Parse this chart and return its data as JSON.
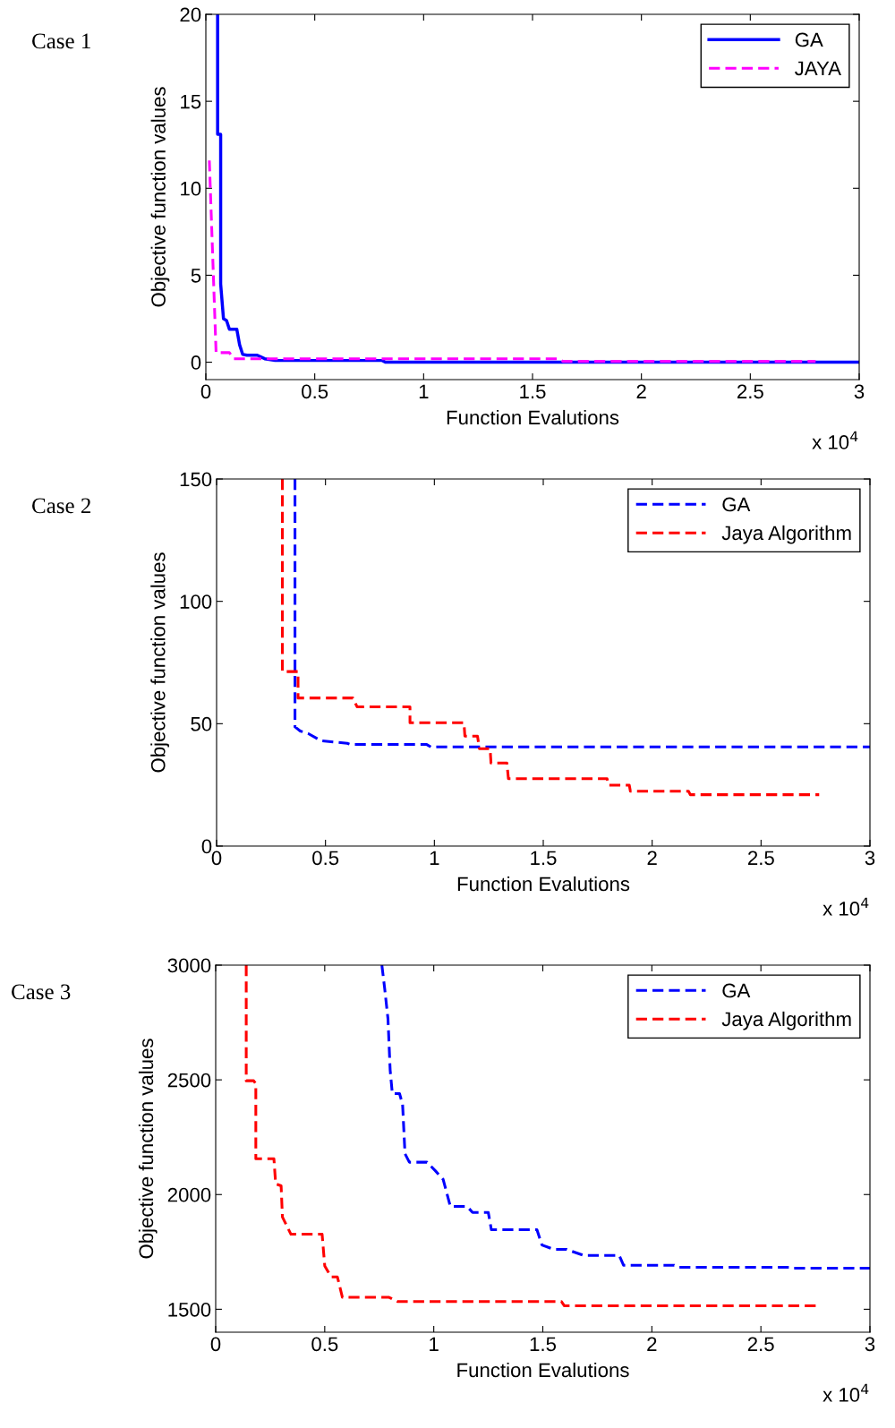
{
  "chart_data": [
    {
      "type": "line",
      "xlabel": "Function Evalutions",
      "ylabel": "Objective function values",
      "annotations": [
        "Case 1",
        "x 10$^{4}$"
      ],
      "xlim": [
        0,
        3
      ],
      "ylim": [
        -1,
        20
      ],
      "xticks": [
        0,
        0.5,
        1,
        1.5,
        2,
        2.5,
        3
      ],
      "yticks": [
        0,
        5,
        10,
        15,
        20
      ],
      "grid": false,
      "legend": "top right",
      "series": [
        {
          "name": "GA",
          "color": "#0000ff",
          "line_style": "solid",
          "x": [
            0.054,
            0.054,
            0.068,
            0.068,
            0.081,
            0.095,
            0.108,
            0.142,
            0.155,
            0.169,
            0.189,
            0.236,
            0.27,
            0.318,
            0.81,
            0.824,
            3
          ],
          "values": [
            20,
            13.1,
            13.1,
            4.5,
            2.5,
            2.4,
            1.9,
            1.9,
            1.0,
            0.45,
            0.4,
            0.4,
            0.2,
            0.1,
            0.1,
            0,
            0
          ]
        },
        {
          "name": "JAYA",
          "color": "#ff00ff",
          "line_style": "dashed",
          "x": [
            0.016,
            0.047,
            0.108,
            0.128,
            1.62,
            1.64,
            2.8
          ],
          "values": [
            11.6,
            0.55,
            0.55,
            0.2,
            0.2,
            0.05,
            0.05
          ]
        }
      ]
    },
    {
      "type": "line",
      "xlabel": "Function Evalutions",
      "ylabel": "Objective function values",
      "annotations": [
        "Case 2",
        "x 10$^{4}$"
      ],
      "xlim": [
        0,
        3
      ],
      "ylim": [
        0,
        150
      ],
      "xticks": [
        0,
        0.5,
        1,
        1.5,
        2,
        2.5,
        3
      ],
      "yticks": [
        0,
        50,
        100,
        150
      ],
      "grid": false,
      "legend": "top right",
      "series": [
        {
          "name": "GA",
          "color": "#0000ff",
          "line_style": "dashed",
          "x": [
            0.36,
            0.36,
            0.384,
            0.42,
            0.48,
            0.6,
            0.616,
            0.965,
            0.984,
            3
          ],
          "values": [
            150,
            48.7,
            47,
            46,
            43,
            42,
            41.5,
            41.5,
            40.5,
            40.5
          ]
        },
        {
          "name": "Jaya Algorithm",
          "color": "#ff0000",
          "line_style": "dashed",
          "x": [
            0.302,
            0.302,
            0.374,
            0.374,
            0.626,
            0.645,
            0.888,
            0.888,
            1.136,
            1.14,
            1.198,
            1.207,
            1.256,
            1.26,
            1.333,
            1.34,
            1.793,
            1.8,
            1.895,
            1.9,
            2.167,
            2.175,
            2.767
          ],
          "values": [
            150,
            71.3,
            71.3,
            60.5,
            60.5,
            56.9,
            56.9,
            50.4,
            50.4,
            44.9,
            44.9,
            39.8,
            39.8,
            33.9,
            33.9,
            27.5,
            27.5,
            24.9,
            24.9,
            22.4,
            22.4,
            21,
            21
          ]
        }
      ]
    },
    {
      "type": "line",
      "xlabel": "Function Evalutions",
      "ylabel": "Objective function values",
      "annotations": [
        "Case 3",
        "x 10$^{4}$"
      ],
      "xlim": [
        0,
        3
      ],
      "ylim": [
        1400,
        3000
      ],
      "xticks": [
        0,
        0.5,
        1,
        1.5,
        2,
        2.5,
        3
      ],
      "yticks": [
        1500,
        2000,
        2500,
        3000
      ],
      "grid": false,
      "legend": "top right",
      "series": [
        {
          "name": "GA",
          "color": "#0000ff",
          "line_style": "dashed",
          "x": [
            0.762,
            0.775,
            0.79,
            0.8,
            0.81,
            0.843,
            0.857,
            0.868,
            0.888,
            0.969,
            1.008,
            1.043,
            1.076,
            1.153,
            1.178,
            1.25,
            1.264,
            1.473,
            1.496,
            1.55,
            1.609,
            1.686,
            1.85,
            1.87,
            2.103,
            2.122,
            2.636,
            2.65,
            3
          ],
          "values": [
            3000,
            2897,
            2766,
            2542,
            2440,
            2440,
            2393,
            2178,
            2141,
            2141,
            2103,
            2066,
            1948,
            1948,
            1922,
            1922,
            1847,
            1847,
            1780,
            1761,
            1761,
            1735,
            1735,
            1692,
            1692,
            1683,
            1683,
            1679,
            1679
          ]
        },
        {
          "name": "Jaya Algorithm",
          "color": "#ff0000",
          "line_style": "dashed",
          "x": [
            0.14,
            0.14,
            0.174,
            0.184,
            0.184,
            0.267,
            0.275,
            0.3,
            0.306,
            0.345,
            0.488,
            0.5,
            0.529,
            0.558,
            0.581,
            0.795,
            0.833,
            1.585,
            1.599,
            2.762
          ],
          "values": [
            3000,
            2496,
            2496,
            2483,
            2156,
            2156,
            2047,
            2038,
            1902,
            1827,
            1827,
            1689,
            1641,
            1641,
            1552,
            1552,
            1534,
            1534,
            1515,
            1515
          ]
        }
      ]
    }
  ]
}
